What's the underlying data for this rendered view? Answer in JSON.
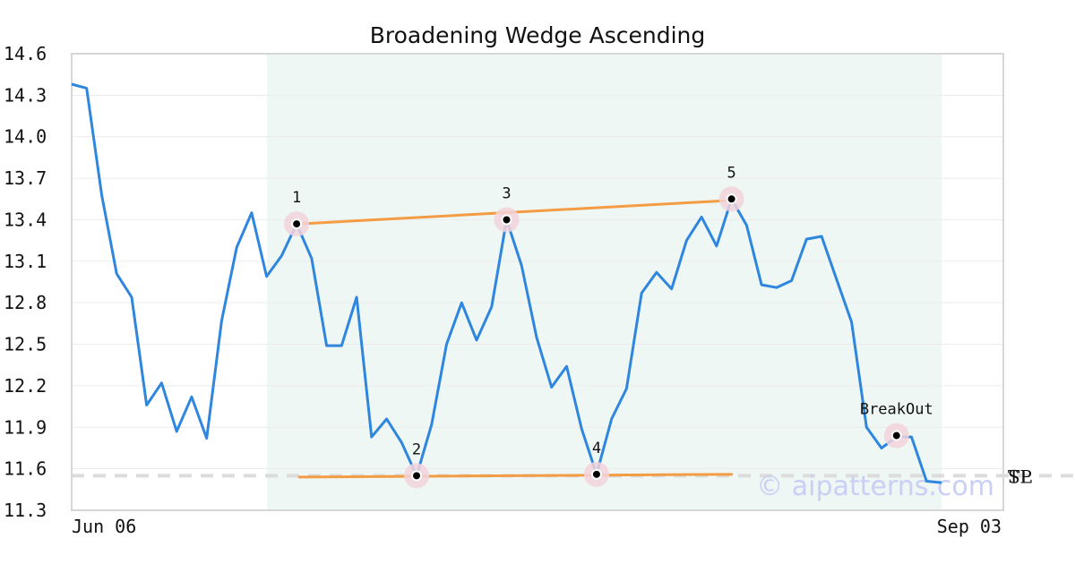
{
  "watermark": "© aipatterns.com",
  "chart_data": {
    "type": "line",
    "title": "Broadening Wedge Ascending",
    "xlabel": "",
    "ylabel": "",
    "x_tick_labels": [
      "Jun 06",
      "Sep 03"
    ],
    "ylim": [
      11.3,
      14.6
    ],
    "y_ticks": [
      11.3,
      11.6,
      11.9,
      12.2,
      12.5,
      12.8,
      13.1,
      13.4,
      13.7,
      14.0,
      14.3,
      14.6
    ],
    "grid": true,
    "colors": {
      "price": "#2e86de",
      "trendline": "#f39c44",
      "pattern_zone": "#eef7f3",
      "marker_halo": "#f2d4dc",
      "level_line": "#dcdcdc",
      "watermark": "#c9cff5"
    },
    "series": [
      {
        "values": [
          14.38,
          14.35,
          13.58,
          13.01,
          12.84,
          12.06,
          12.22,
          11.87,
          12.12,
          11.82,
          12.67,
          13.2,
          13.45,
          12.99,
          13.14,
          13.37,
          13.12,
          12.49,
          12.49,
          12.84,
          11.83,
          11.96,
          11.79,
          11.55,
          11.92,
          12.5,
          12.8,
          12.53,
          12.77,
          13.4,
          13.07,
          12.55,
          12.19,
          12.34,
          11.89,
          11.56,
          11.96,
          12.18,
          12.87,
          13.02,
          12.9,
          13.25,
          13.42,
          13.21,
          13.55,
          13.36,
          12.93,
          12.91,
          12.96,
          13.26,
          13.28,
          12.97,
          12.66,
          11.9,
          11.75,
          11.83,
          11.83,
          11.51,
          11.5
        ]
      }
    ],
    "pattern_zone": {
      "start_index": 13,
      "end_index": 58
    },
    "pivots": [
      {
        "label": "1",
        "index": 15,
        "value": 13.37
      },
      {
        "label": "2",
        "index": 23,
        "value": 11.55
      },
      {
        "label": "3",
        "index": 29,
        "value": 13.4
      },
      {
        "label": "4",
        "index": 35,
        "value": 11.56
      },
      {
        "label": "5",
        "index": 44,
        "value": 13.55
      },
      {
        "label": "BreakOut",
        "index": 55,
        "value": 11.84
      }
    ],
    "trendlines": [
      {
        "from_index": 15,
        "from_value": 13.37,
        "to_index": 44,
        "to_value": 13.54
      },
      {
        "from_index": 15,
        "from_value": 11.54,
        "to_index": 44,
        "to_value": 11.56
      }
    ],
    "levels": [
      {
        "label": "TP",
        "value": 11.55
      },
      {
        "label": "SL",
        "value": 11.55
      }
    ]
  }
}
